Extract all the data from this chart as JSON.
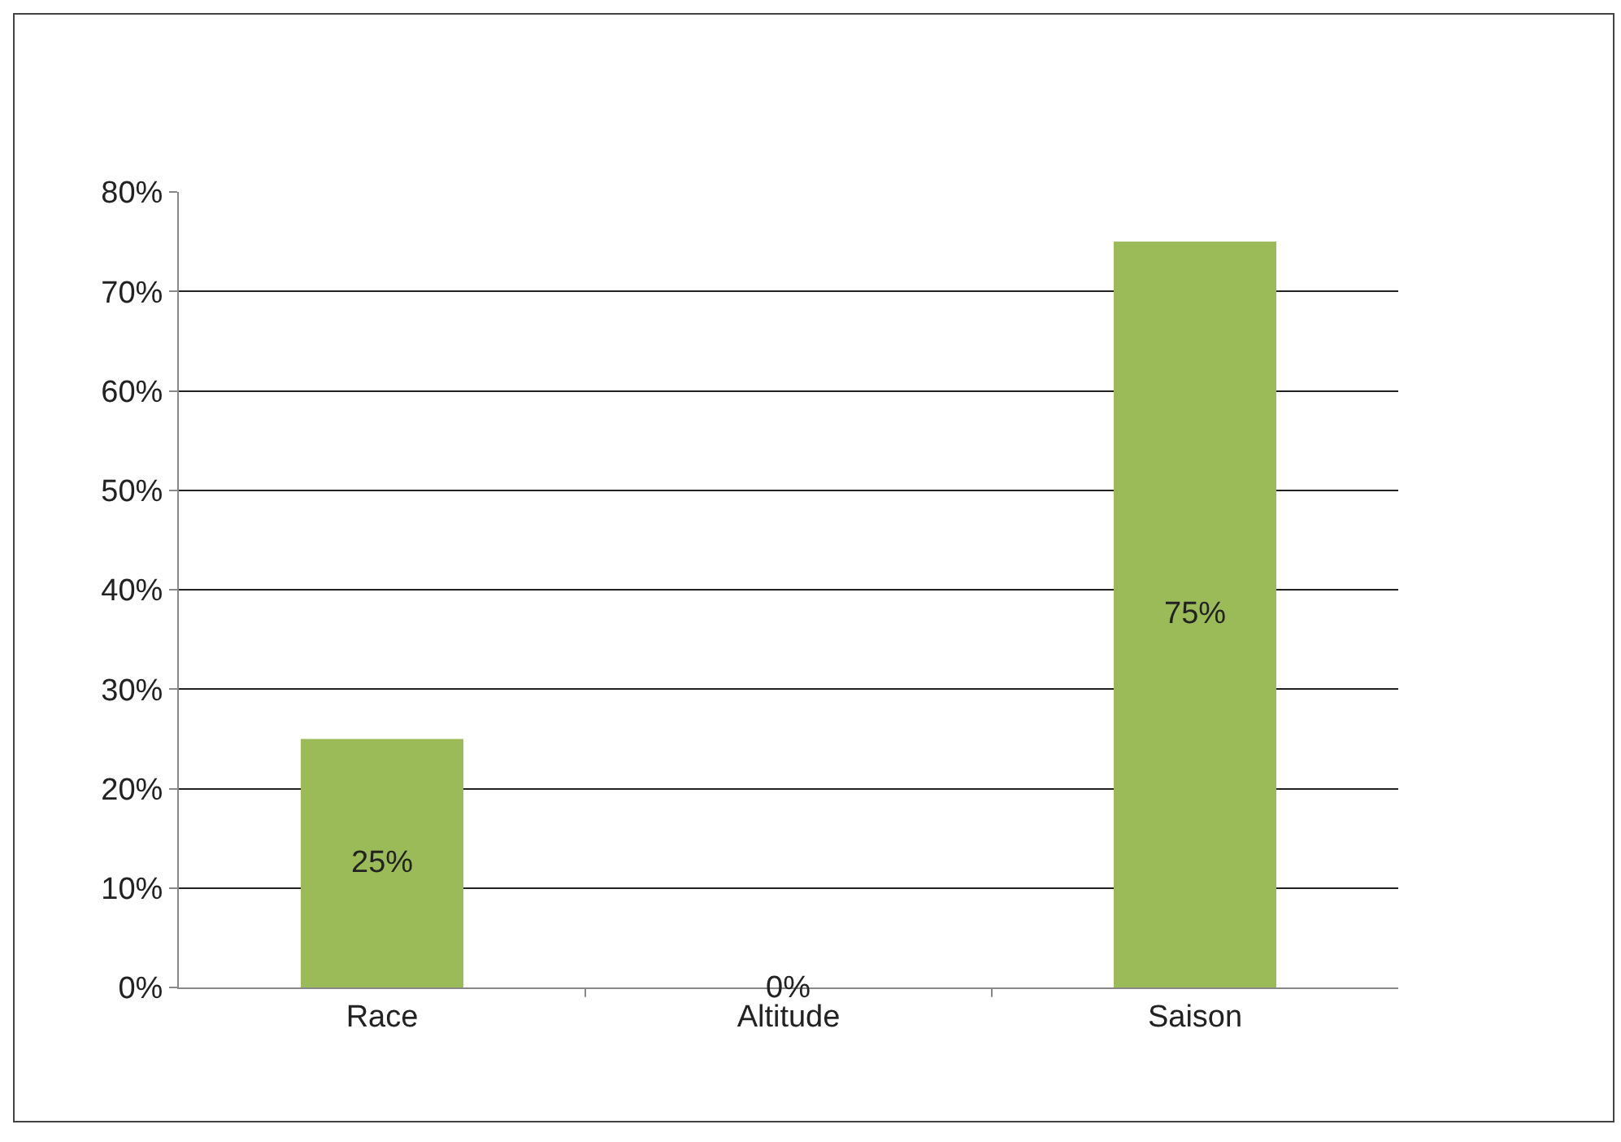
{
  "chart_data": {
    "type": "bar",
    "categories": [
      "Race",
      "Altitude",
      "Saison"
    ],
    "values": [
      25,
      0,
      75
    ],
    "value_labels": [
      "25%",
      "0%",
      "75%"
    ],
    "color": "#9bbb59",
    "ylim": [
      0,
      80
    ],
    "yticks": [
      {
        "value": 0,
        "label": "0%"
      },
      {
        "value": 10,
        "label": "10%"
      },
      {
        "value": 20,
        "label": "20%"
      },
      {
        "value": 30,
        "label": "30%"
      },
      {
        "value": 40,
        "label": "40%"
      },
      {
        "value": 50,
        "label": "50%"
      },
      {
        "value": 60,
        "label": "60%"
      },
      {
        "value": 70,
        "label": "70%"
      },
      {
        "value": 80,
        "label": "80%"
      }
    ],
    "grid": "y",
    "legend": false
  }
}
